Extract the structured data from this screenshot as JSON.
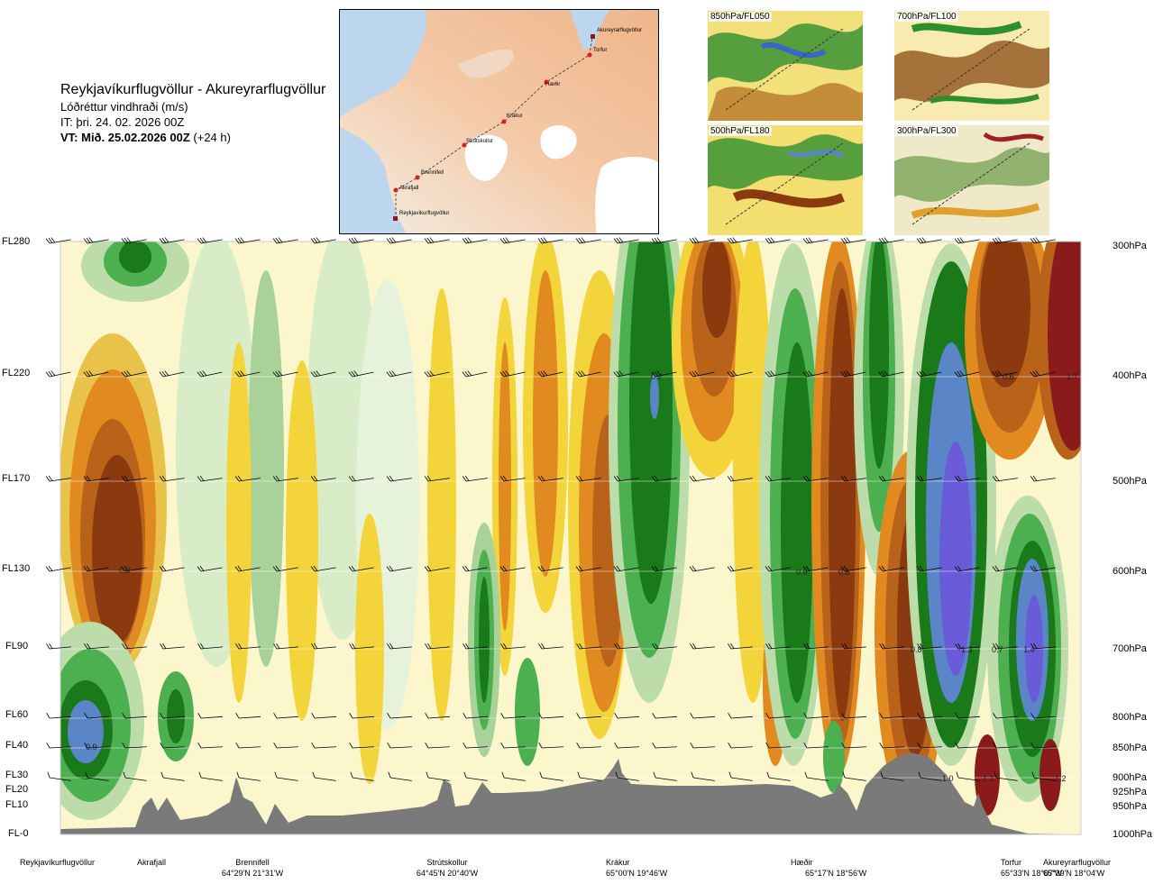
{
  "header": {
    "title": "Reykjavíkurflugvöllur - Akureyrarflugvöllur",
    "subtitle": "Lóðréttur vindhraði (m/s)",
    "issue_time": "IT: þri. 24. 02. 2026 00Z",
    "valid_time_bold": "VT: Mið. 25.02.2026 00Z",
    "valid_time_suffix": " (+24 h)"
  },
  "route_map": {
    "points": [
      "Akureyrarflugvöllur",
      "Torfur",
      "Hæðir",
      "Krákur",
      "Strútskollur",
      "Brennifell",
      "Akrafjall",
      "Reykjavíkurflugvöllur"
    ]
  },
  "level_maps": [
    {
      "label": "850hPa/FL050"
    },
    {
      "label": "700hPa/FL100"
    },
    {
      "label": "500hPa/FL180"
    },
    {
      "label": "300hPa/FL300"
    }
  ],
  "flight_levels": [
    "FL280",
    "FL220",
    "FL170",
    "FL130",
    "FL90",
    "FL60",
    "FL40",
    "FL30",
    "FL20",
    "FL10",
    "FL-0"
  ],
  "pressure_levels": [
    "300hPa",
    "400hPa",
    "500hPa",
    "600hPa",
    "700hPa",
    "800hPa",
    "850hPa",
    "900hPa",
    "925hPa",
    "950hPa",
    "1000hPa"
  ],
  "contour_labels": [
    "0.7",
    "0.6",
    "1.7",
    "0.9",
    "0.6",
    "0.8",
    "0.8",
    "1.3",
    "0.7",
    "1.4",
    "0.9",
    "1.0",
    "1.1",
    "1.2"
  ],
  "stations": [
    {
      "name": "Reykjavíkurflugvöllur",
      "coords": ""
    },
    {
      "name": "Akrafjall",
      "coords": ""
    },
    {
      "name": "Brennifell",
      "coords": "64°29'N 21°31'W"
    },
    {
      "name": "Strútskollur",
      "coords": "64°45'N 20°40'W"
    },
    {
      "name": "Krákur",
      "coords": "65°00'N 19°46'W"
    },
    {
      "name": "Hæðir",
      "coords": "65°17'N 18°56'W"
    },
    {
      "name": "Torfur",
      "coords": "65°33'N 18°07'W"
    },
    {
      "name": "Akureyrarflugvöllur",
      "coords": "65°39'N 18°04'W"
    }
  ],
  "colors": {
    "brown_dark": "#8b3a10",
    "orange": "#e08a20",
    "yellow": "#f3d43a",
    "pale_yellow": "#fbf3b4",
    "pale_green": "#d8ecc8",
    "green": "#4caf50",
    "green_dark": "#1a7a1a",
    "blue": "#5a86c8",
    "violet": "#6a5cd8",
    "red": "#8b1a1a",
    "terrain": "#7a7a7a"
  }
}
